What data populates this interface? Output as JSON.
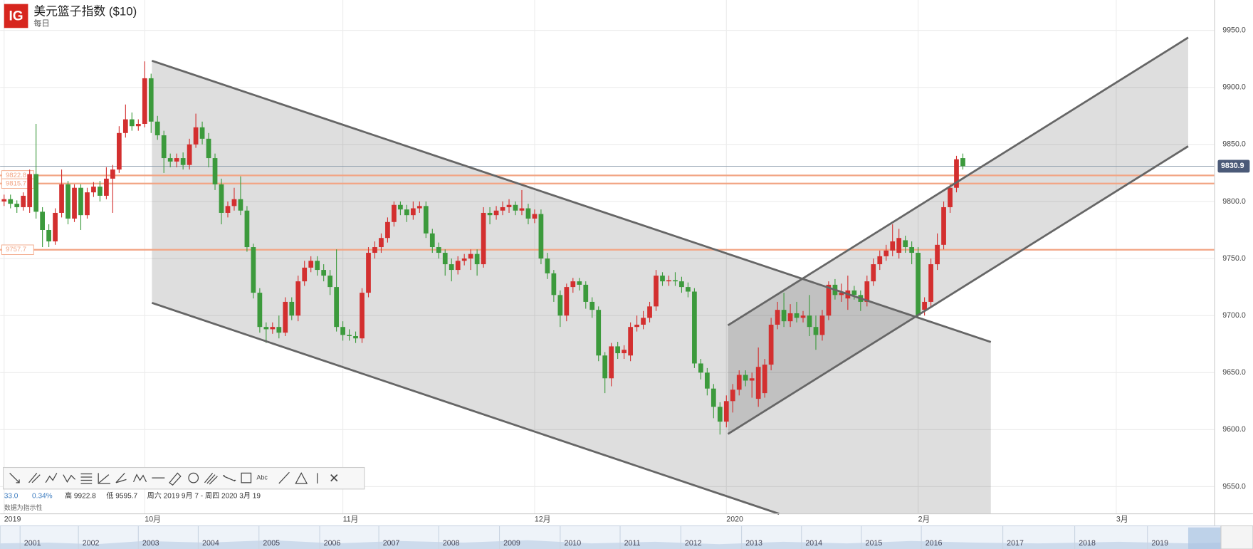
{
  "header": {
    "logo": "IG"
  },
  "toolbar": {
    "text_tool": "Abc"
  },
  "stats": {
    "change": "33.0",
    "change_pct": "0.34%",
    "high": "高 9922.8",
    "low": "低 9595.7",
    "range": "周六 2019 9月 7 - 周四 2020 3月 19",
    "note": "数据为指示性"
  },
  "navigator": {
    "years": [
      "2001",
      "2002",
      "2003",
      "2004",
      "2005",
      "2006",
      "2007",
      "2008",
      "2009",
      "2010",
      "2011",
      "2012",
      "2013",
      "2014",
      "2015",
      "2016",
      "2017",
      "2018",
      "2019"
    ]
  },
  "chart_data": {
    "type": "candlestick",
    "title": "美元篮子指数 ($10)",
    "subtitle": "每日",
    "up_color": "#d32f2f",
    "down_color": "#3c9a3c",
    "grid": true,
    "level_color": "#f2a584",
    "ylim": [
      9526.2,
      9976.6
    ],
    "yticks": [
      {
        "value": 9550,
        "label": "9550.0"
      },
      {
        "value": 9600,
        "label": "9600.0"
      },
      {
        "value": 9650,
        "label": "9650.0"
      },
      {
        "value": 9700,
        "label": "9700.0"
      },
      {
        "value": 9750,
        "label": "9750.0"
      },
      {
        "value": 9800,
        "label": "9800.0"
      },
      {
        "value": 9850,
        "label": "9850.0"
      },
      {
        "value": 9900,
        "label": "9900.0"
      },
      {
        "value": 9950,
        "label": "9950.0"
      }
    ],
    "levels": [
      9822.8,
      9815.7,
      9757.7
    ],
    "x_extra_labels": [
      "3月"
    ],
    "categories": [
      "2019",
      null,
      null,
      null,
      null,
      null,
      null,
      null,
      null,
      null,
      null,
      null,
      null,
      null,
      null,
      null,
      null,
      null,
      null,
      null,
      null,
      null,
      "10月",
      null,
      null,
      null,
      null,
      null,
      null,
      null,
      null,
      null,
      null,
      null,
      null,
      null,
      null,
      null,
      null,
      null,
      null,
      null,
      null,
      null,
      null,
      null,
      null,
      null,
      null,
      null,
      null,
      null,
      null,
      "11月",
      null,
      null,
      null,
      null,
      null,
      null,
      null,
      null,
      null,
      null,
      null,
      null,
      null,
      null,
      null,
      null,
      null,
      null,
      null,
      null,
      null,
      null,
      null,
      null,
      null,
      null,
      null,
      null,
      null,
      "12月",
      null,
      null,
      null,
      null,
      null,
      null,
      null,
      null,
      null,
      null,
      null,
      null,
      null,
      null,
      null,
      null,
      null,
      null,
      null,
      null,
      null,
      null,
      null,
      null,
      null,
      null,
      null,
      null,
      null,
      "2020",
      null,
      null,
      null,
      null,
      null,
      null,
      null,
      null,
      null,
      null,
      null,
      null,
      null,
      null,
      null,
      null,
      null,
      null,
      null,
      null,
      null,
      null,
      null,
      null,
      null,
      null,
      null,
      null,
      null,
      "2月",
      null,
      null,
      null,
      null,
      null,
      null,
      null
    ],
    "open": [
      9800,
      9802,
      9798,
      9795,
      9795,
      9824,
      9791,
      9775,
      9765,
      9790,
      9815,
      9785,
      9812,
      9788,
      9808,
      9813,
      9805,
      9820,
      9828,
      9860,
      9872,
      9866,
      9868,
      9908,
      9870,
      9858,
      9838,
      9835,
      9838,
      9832,
      9850,
      9865,
      9855,
      9838,
      9815,
      9790,
      9796,
      9802,
      9792,
      9760,
      9720,
      9690,
      9688,
      9690,
      9685,
      9712,
      9700,
      9730,
      9742,
      9748,
      9740,
      9735,
      9725,
      9690,
      9683,
      9682,
      9680,
      9720,
      9755,
      9760,
      9768,
      9782,
      9797,
      9793,
      9788,
      9794,
      9796,
      9772,
      9760,
      9755,
      9745,
      9740,
      9748,
      9750,
      9754,
      9745,
      9790,
      9788,
      9792,
      9795,
      9797,
      9792,
      9794,
      9785,
      9789,
      9750,
      9737,
      9718,
      9700,
      9725,
      9730,
      9727,
      9712,
      9705,
      9665,
      9645,
      9673,
      9667,
      9665,
      9690,
      9692,
      9698,
      9708,
      9735,
      9730,
      9731,
      9730,
      9725,
      9721,
      9658,
      9650,
      9636,
      9620,
      9607,
      9625,
      9635,
      9648,
      9643,
      9627,
      9632,
      9657,
      9692,
      9705,
      9695,
      9702,
      9698,
      9700,
      9690,
      9683,
      9700,
      9727,
      9718,
      9715,
      9722,
      9718,
      9712,
      9730,
      9745,
      9752,
      9757,
      9755,
      9766,
      9760,
      9755,
      9705,
      9712,
      9745,
      9762,
      9795,
      9812,
      9838
    ],
    "high": [
      9806,
      9806,
      9801,
      9808,
      9828,
      9868,
      9795,
      9780,
      9794,
      9828,
      9818,
      9815,
      9815,
      9812,
      9817,
      9818,
      9830,
      9832,
      9866,
      9885,
      9878,
      9872,
      9922.8,
      9912,
      9875,
      9862,
      9842,
      9842,
      9843,
      9855,
      9877,
      9870,
      9860,
      9842,
      9820,
      9800,
      9812,
      9822,
      9796,
      9763,
      9724,
      9694,
      9694,
      9700,
      9716,
      9716,
      9735,
      9748,
      9752,
      9752,
      9745,
      9740,
      9758,
      9695,
      9688,
      9686,
      9724,
      9760,
      9765,
      9772,
      9786,
      9800,
      9800,
      9797,
      9800,
      9800,
      9800,
      9776,
      9764,
      9758,
      9750,
      9752,
      9754,
      9758,
      9758,
      9795,
      9795,
      9796,
      9800,
      9802,
      9800,
      9810,
      9798,
      9793,
      9793,
      9755,
      9740,
      9722,
      9728,
      9733,
      9733,
      9730,
      9716,
      9708,
      9668,
      9676,
      9677,
      9674,
      9694,
      9700,
      9704,
      9712,
      9740,
      9738,
      9735,
      9738,
      9734,
      9729,
      9724,
      9662,
      9654,
      9640,
      9624,
      9630,
      9640,
      9652,
      9652,
      9650,
      9672,
      9662,
      9698,
      9712,
      9720,
      9710,
      9712,
      9704,
      9718,
      9700,
      9705,
      9730,
      9732,
      9728,
      9735,
      9726,
      9722,
      9735,
      9750,
      9757,
      9762,
      9780,
      9776,
      9770,
      9765,
      9760,
      9716,
      9750,
      9772,
      9800,
      9815,
      9840,
      9842
    ],
    "low": [
      9796,
      9794,
      9790,
      9792,
      9790,
      9785,
      9760,
      9760,
      9762,
      9786,
      9780,
      9782,
      9775,
      9785,
      9804,
      9800,
      9802,
      9790,
      9825,
      9856,
      9862,
      9862,
      9865,
      9860,
      9854,
      9825,
      9830,
      9830,
      9828,
      9828,
      9847,
      9850,
      9830,
      9810,
      9780,
      9786,
      9792,
      9788,
      9756,
      9715,
      9685,
      9676,
      9684,
      9680,
      9682,
      9696,
      9695,
      9726,
      9738,
      9735,
      9730,
      9718,
      9686,
      9678,
      9678,
      9676,
      9676,
      9716,
      9750,
      9755,
      9764,
      9778,
      9788,
      9782,
      9784,
      9790,
      9768,
      9755,
      9750,
      9735,
      9730,
      9736,
      9744,
      9740,
      9735,
      9742,
      9780,
      9784,
      9788,
      9790,
      9788,
      9788,
      9780,
      9781,
      9745,
      9732,
      9712,
      9690,
      9695,
      9720,
      9722,
      9706,
      9698,
      9660,
      9632,
      9638,
      9662,
      9662,
      9660,
      9686,
      9688,
      9694,
      9704,
      9726,
      9726,
      9726,
      9720,
      9716,
      9654,
      9644,
      9630,
      9610,
      9595.7,
      9602,
      9615,
      9630,
      9638,
      9628,
      9620,
      9628,
      9652,
      9688,
      9690,
      9690,
      9694,
      9694,
      9682,
      9670,
      9678,
      9696,
      9714,
      9712,
      9705,
      9714,
      9704,
      9708,
      9726,
      9740,
      9748,
      9752,
      9750,
      9755,
      9745,
      9698,
      9700,
      9708,
      9740,
      9758,
      9790,
      9808,
      9828
    ],
    "close": [
      9802,
      9798,
      9795,
      9805,
      9824,
      9791,
      9775,
      9765,
      9790,
      9815,
      9785,
      9812,
      9788,
      9808,
      9813,
      9805,
      9820,
      9828,
      9860,
      9872,
      9866,
      9868,
      9908,
      9870,
      9858,
      9838,
      9835,
      9838,
      9832,
      9850,
      9865,
      9855,
      9838,
      9815,
      9790,
      9796,
      9802,
      9792,
      9760,
      9720,
      9690,
      9688,
      9690,
      9685,
      9712,
      9700,
      9730,
      9742,
      9748,
      9740,
      9735,
      9725,
      9690,
      9683,
      9682,
      9680,
      9720,
      9755,
      9760,
      9768,
      9782,
      9797,
      9793,
      9788,
      9794,
      9796,
      9772,
      9760,
      9755,
      9745,
      9740,
      9748,
      9750,
      9754,
      9745,
      9790,
      9788,
      9792,
      9795,
      9797,
      9792,
      9794,
      9785,
      9789,
      9750,
      9737,
      9718,
      9700,
      9725,
      9730,
      9727,
      9712,
      9705,
      9665,
      9645,
      9673,
      9667,
      9670,
      9690,
      9692,
      9698,
      9708,
      9735,
      9730,
      9731,
      9730,
      9725,
      9721,
      9658,
      9650,
      9636,
      9620,
      9607,
      9625,
      9635,
      9648,
      9643,
      9645,
      9655,
      9657,
      9692,
      9705,
      9695,
      9702,
      9698,
      9700,
      9690,
      9683,
      9700,
      9727,
      9718,
      9720,
      9722,
      9718,
      9712,
      9730,
      9745,
      9752,
      9757,
      9765,
      9768,
      9760,
      9755,
      9700,
      9712,
      9745,
      9762,
      9795,
      9812,
      9837,
      9830.9
    ]
  }
}
